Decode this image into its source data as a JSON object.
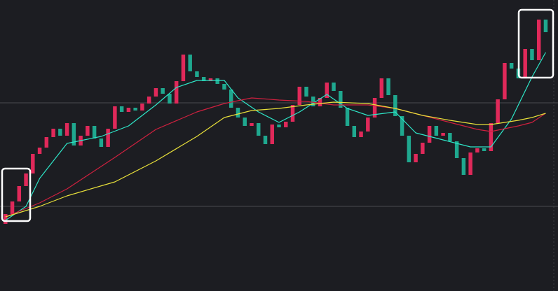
{
  "chart_data": {
    "type": "candlestick",
    "background": "#1c1d22",
    "xlim": [
      -0.8,
      80.8
    ],
    "ylim": [
      0,
      416
    ],
    "gridlines": [
      121,
      269
    ],
    "grid_color": "#4a4b50",
    "up_color": "#e0295a",
    "down_color": "#1fa88f",
    "open": [
      96,
      110,
      128,
      150,
      168,
      196,
      205,
      220,
      232,
      222,
      240,
      208,
      222,
      236,
      218,
      206,
      232,
      264,
      256,
      262,
      258,
      268,
      278,
      290,
      282,
      268,
      300,
      338,
      314,
      306,
      300,
      304,
      296,
      288,
      262,
      248,
      236,
      240,
      222,
      210,
      238,
      234,
      242,
      266,
      292,
      278,
      264,
      276,
      298,
      286,
      262,
      236,
      220,
      228,
      248,
      276,
      304,
      280,
      250,
      222,
      184,
      196,
      212,
      236,
      222,
      226,
      214,
      190,
      166,
      198,
      204,
      200,
      240,
      274,
      326,
      318,
      304,
      346,
      330,
      388
    ],
    "close": [
      110,
      128,
      150,
      168,
      196,
      205,
      220,
      232,
      222,
      240,
      208,
      222,
      236,
      218,
      206,
      232,
      264,
      256,
      262,
      258,
      268,
      278,
      290,
      282,
      268,
      300,
      338,
      314,
      306,
      300,
      304,
      296,
      288,
      262,
      248,
      236,
      240,
      222,
      210,
      238,
      234,
      242,
      266,
      292,
      278,
      264,
      276,
      298,
      286,
      262,
      236,
      220,
      228,
      248,
      276,
      304,
      280,
      250,
      222,
      184,
      196,
      212,
      236,
      222,
      226,
      214,
      190,
      166,
      198,
      204,
      200,
      240,
      274,
      326,
      318,
      304,
      346,
      330,
      388,
      370
    ],
    "series": [
      {
        "type": "line",
        "color": "#2ee6c8",
        "x": [
          0,
          3,
          5,
          9,
          14,
          18,
          22,
          25,
          28,
          32,
          34,
          37,
          40,
          43,
          47,
          50,
          53,
          57,
          60,
          64,
          68,
          71,
          74,
          77,
          79
        ],
        "values": [
          101,
          121,
          161,
          211,
          221,
          236,
          266,
          291,
          301,
          301,
          276,
          256,
          241,
          256,
          281,
          261,
          251,
          256,
          226,
          216,
          206,
          206,
          246,
          306,
          341
        ]
      },
      {
        "type": "line",
        "color": "#d0203f",
        "x": [
          0,
          5,
          9,
          16,
          22,
          28,
          32,
          36,
          40,
          44,
          48,
          53,
          57,
          61,
          65,
          69,
          71,
          75,
          77,
          79
        ],
        "values": [
          106,
          126,
          146,
          191,
          231,
          256,
          268,
          276,
          273,
          271,
          266,
          266,
          261,
          251,
          241,
          231,
          228,
          236,
          241,
          254
        ]
      },
      {
        "type": "line",
        "color": "#e8e03a",
        "x": [
          0,
          5,
          9,
          16,
          22,
          28,
          32,
          36,
          40,
          44,
          48,
          53,
          57,
          61,
          65,
          69,
          71,
          75,
          77,
          79
        ],
        "values": [
          106,
          121,
          136,
          156,
          186,
          221,
          248,
          258,
          261,
          266,
          270,
          268,
          261,
          251,
          244,
          238,
          238,
          244,
          248,
          254
        ]
      }
    ]
  }
}
